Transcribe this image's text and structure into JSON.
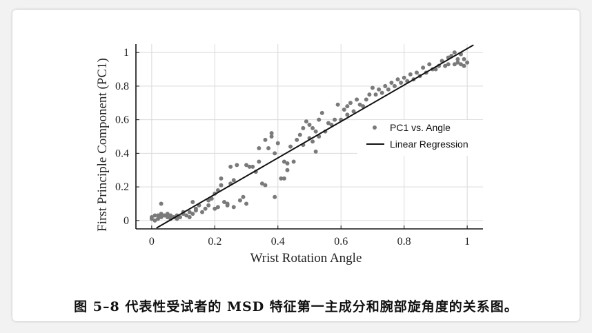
{
  "caption": "图 5–8 代表性受试者的 MSD 特征第一主成分和腕部旋角度的关系图。",
  "colors": {
    "points": "#7a7a7a",
    "line": "#111111",
    "grid": "#d9d9d9"
  },
  "chart_data": {
    "type": "scatter",
    "xlabel": "Wrist Rotation Angle",
    "ylabel": "First Principle Component (PC1)",
    "xlim": [
      -0.05,
      1.05
    ],
    "ylim": [
      -0.05,
      1.05
    ],
    "xticks": [
      0,
      0.2,
      0.4,
      0.6,
      0.8,
      1
    ],
    "xtick_labels": [
      "0",
      "0.2",
      "0.4",
      "0.6",
      "0.8",
      "1"
    ],
    "yticks": [
      0,
      0.2,
      0.4,
      0.6,
      0.8,
      1
    ],
    "ytick_labels": [
      "0",
      "0.2",
      "0.4",
      "0.6",
      "0.8",
      "1"
    ],
    "grid": true,
    "legend": {
      "position": "right",
      "entries": [
        "PC1 vs. Angle",
        "Linear Regression"
      ]
    },
    "series": [
      {
        "name": "PC1 vs. Angle",
        "type": "scatter",
        "points": [
          [
            0.0,
            0.01
          ],
          [
            0.0,
            0.02
          ],
          [
            0.01,
            0.03
          ],
          [
            0.01,
            0.0
          ],
          [
            0.02,
            0.03
          ],
          [
            0.02,
            0.01
          ],
          [
            0.03,
            0.02
          ],
          [
            0.03,
            0.04
          ],
          [
            0.03,
            0.1
          ],
          [
            0.04,
            0.03
          ],
          [
            0.05,
            0.02
          ],
          [
            0.05,
            0.04
          ],
          [
            0.06,
            0.01
          ],
          [
            0.06,
            0.03
          ],
          [
            0.07,
            0.02
          ],
          [
            0.08,
            0.03
          ],
          [
            0.08,
            0.01
          ],
          [
            0.09,
            0.02
          ],
          [
            0.1,
            0.04
          ],
          [
            0.1,
            0.05
          ],
          [
            0.11,
            0.03
          ],
          [
            0.12,
            0.05
          ],
          [
            0.12,
            0.02
          ],
          [
            0.13,
            0.04
          ],
          [
            0.13,
            0.11
          ],
          [
            0.14,
            0.07
          ],
          [
            0.14,
            0.06
          ],
          [
            0.15,
            0.09
          ],
          [
            0.16,
            0.05
          ],
          [
            0.17,
            0.07
          ],
          [
            0.18,
            0.09
          ],
          [
            0.18,
            0.12
          ],
          [
            0.19,
            0.13
          ],
          [
            0.2,
            0.07
          ],
          [
            0.2,
            0.16
          ],
          [
            0.21,
            0.18
          ],
          [
            0.21,
            0.08
          ],
          [
            0.22,
            0.21
          ],
          [
            0.22,
            0.25
          ],
          [
            0.23,
            0.11
          ],
          [
            0.24,
            0.09
          ],
          [
            0.24,
            0.1
          ],
          [
            0.25,
            0.22
          ],
          [
            0.25,
            0.32
          ],
          [
            0.26,
            0.24
          ],
          [
            0.26,
            0.08
          ],
          [
            0.27,
            0.33
          ],
          [
            0.28,
            0.12
          ],
          [
            0.29,
            0.14
          ],
          [
            0.3,
            0.1
          ],
          [
            0.3,
            0.33
          ],
          [
            0.31,
            0.32
          ],
          [
            0.32,
            0.32
          ],
          [
            0.33,
            0.29
          ],
          [
            0.34,
            0.35
          ],
          [
            0.34,
            0.43
          ],
          [
            0.35,
            0.22
          ],
          [
            0.36,
            0.48
          ],
          [
            0.36,
            0.21
          ],
          [
            0.37,
            0.43
          ],
          [
            0.38,
            0.5
          ],
          [
            0.38,
            0.52
          ],
          [
            0.39,
            0.14
          ],
          [
            0.39,
            0.4
          ],
          [
            0.4,
            0.46
          ],
          [
            0.41,
            0.25
          ],
          [
            0.42,
            0.25
          ],
          [
            0.42,
            0.35
          ],
          [
            0.43,
            0.34
          ],
          [
            0.43,
            0.3
          ],
          [
            0.44,
            0.44
          ],
          [
            0.45,
            0.35
          ],
          [
            0.46,
            0.48
          ],
          [
            0.47,
            0.51
          ],
          [
            0.48,
            0.55
          ],
          [
            0.48,
            0.45
          ],
          [
            0.49,
            0.59
          ],
          [
            0.5,
            0.49
          ],
          [
            0.5,
            0.57
          ],
          [
            0.51,
            0.47
          ],
          [
            0.51,
            0.55
          ],
          [
            0.52,
            0.41
          ],
          [
            0.52,
            0.53
          ],
          [
            0.53,
            0.5
          ],
          [
            0.53,
            0.6
          ],
          [
            0.54,
            0.64
          ],
          [
            0.55,
            0.53
          ],
          [
            0.56,
            0.58
          ],
          [
            0.57,
            0.57
          ],
          [
            0.58,
            0.6
          ],
          [
            0.59,
            0.69
          ],
          [
            0.6,
            0.6
          ],
          [
            0.61,
            0.66
          ],
          [
            0.62,
            0.63
          ],
          [
            0.62,
            0.68
          ],
          [
            0.63,
            0.7
          ],
          [
            0.64,
            0.65
          ],
          [
            0.65,
            0.72
          ],
          [
            0.66,
            0.69
          ],
          [
            0.67,
            0.68
          ],
          [
            0.68,
            0.72
          ],
          [
            0.69,
            0.75
          ],
          [
            0.7,
            0.79
          ],
          [
            0.71,
            0.75
          ],
          [
            0.72,
            0.78
          ],
          [
            0.73,
            0.76
          ],
          [
            0.74,
            0.8
          ],
          [
            0.75,
            0.78
          ],
          [
            0.76,
            0.82
          ],
          [
            0.77,
            0.8
          ],
          [
            0.78,
            0.84
          ],
          [
            0.79,
            0.82
          ],
          [
            0.8,
            0.85
          ],
          [
            0.81,
            0.83
          ],
          [
            0.82,
            0.87
          ],
          [
            0.83,
            0.84
          ],
          [
            0.84,
            0.88
          ],
          [
            0.85,
            0.86
          ],
          [
            0.86,
            0.91
          ],
          [
            0.87,
            0.88
          ],
          [
            0.88,
            0.93
          ],
          [
            0.89,
            0.9
          ],
          [
            0.9,
            0.9
          ],
          [
            0.91,
            0.92
          ],
          [
            0.92,
            0.95
          ],
          [
            0.93,
            0.92
          ],
          [
            0.94,
            0.97
          ],
          [
            0.94,
            0.93
          ],
          [
            0.95,
            0.98
          ],
          [
            0.96,
            1.0
          ],
          [
            0.96,
            0.93
          ],
          [
            0.97,
            0.96
          ],
          [
            0.97,
            0.94
          ],
          [
            0.98,
            0.99
          ],
          [
            0.98,
            0.93
          ],
          [
            0.99,
            0.96
          ],
          [
            0.99,
            0.92
          ],
          [
            1.0,
            0.94
          ]
        ]
      },
      {
        "name": "Linear Regression",
        "type": "line",
        "points": [
          [
            0.015,
            -0.045
          ],
          [
            1.02,
            1.045
          ]
        ]
      }
    ]
  }
}
